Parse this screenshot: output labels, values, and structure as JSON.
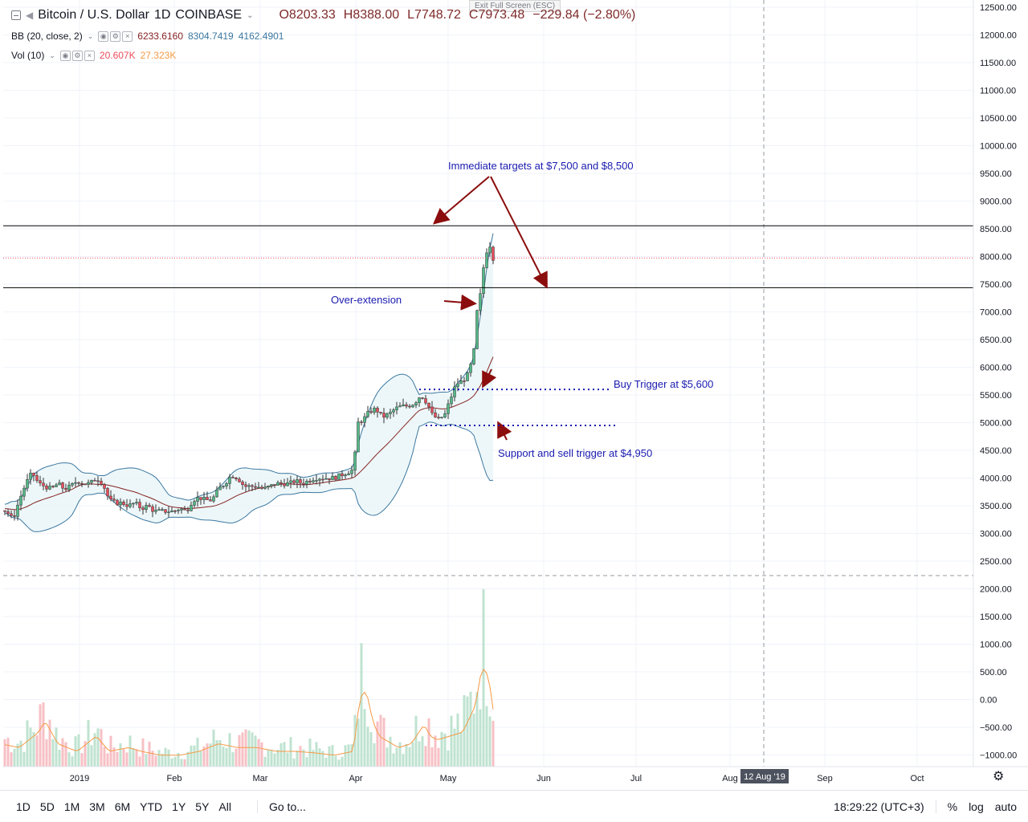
{
  "header": {
    "symbol": "Bitcoin / U.S. Dollar",
    "interval": "1D",
    "exchange": "COINBASE",
    "open": "O8203.33",
    "high": "H8388.00",
    "low": "L7748.72",
    "close": "C7973.48",
    "change": "−229.84 (−2.80%)"
  },
  "indicators": {
    "bb": {
      "label": "BB (20, close, 2)",
      "basis": "6233.6160",
      "upper": "8304.7419",
      "lower": "4162.4901"
    },
    "vol": {
      "label": "Vol (10)",
      "value": "20.607K",
      "ma": "27.323K"
    }
  },
  "exit_fullscreen": "Exit Full Screen (ESC)",
  "annotations": {
    "targets": "Immediate targets at $7,500 and $8,500",
    "overext": "Over-extension",
    "buy": "Buy Trigger at $5,600",
    "support": "Support and sell trigger at $4,950"
  },
  "price_labels": {
    "resistance": "8555.25",
    "last": "7973.48",
    "support": "7436.48",
    "crosshair": "2212.41"
  },
  "crosshair_date": "12 Aug '19",
  "bottom": {
    "timeframes": [
      "1D",
      "5D",
      "1M",
      "3M",
      "6M",
      "YTD",
      "1Y",
      "5Y",
      "All"
    ],
    "goto": "Go to...",
    "clock": "18:29:22 (UTC+3)",
    "percent": "%",
    "log": "log",
    "auto": "auto"
  },
  "colors": {
    "up": "#53b987",
    "down": "#eb4d5c",
    "bb": "#3c78a0",
    "basis": "#872323",
    "annotation": "#1a1ab0",
    "arrow": "#8b0d0d",
    "vol_up": "#bfe3d0",
    "vol_down": "#f7c0c5",
    "vol_ma": "#f59a45"
  },
  "chart_data": {
    "type": "candlestick",
    "y_ticks": [
      "12500.00",
      "12000.00",
      "11500.00",
      "11000.00",
      "10500.00",
      "10000.00",
      "9500.00",
      "9000.00",
      "8500.00",
      "8000.00",
      "7500.00",
      "7000.00",
      "6500.00",
      "6000.00",
      "5500.00",
      "5000.00",
      "4500.00",
      "4000.00",
      "3500.00",
      "3000.00",
      "2500.00",
      "2000.00",
      "1500.00",
      "1000.00",
      "500.00",
      "0.00",
      "−500.00",
      "−1000.00"
    ],
    "x_ticks": [
      "2019",
      "Feb",
      "Mar",
      "Apr",
      "May",
      "Jun",
      "Jul",
      "Aug",
      "Sep",
      "Oct"
    ],
    "price_path": [
      [
        0,
        3450
      ],
      [
        8,
        3400
      ],
      [
        16,
        3250
      ],
      [
        24,
        3600
      ],
      [
        32,
        3900
      ],
      [
        40,
        4100
      ],
      [
        48,
        3900
      ],
      [
        56,
        3850
      ],
      [
        64,
        3800
      ],
      [
        72,
        3900
      ],
      [
        80,
        3800
      ],
      [
        88,
        3850
      ],
      [
        96,
        3950
      ],
      [
        104,
        3900
      ],
      [
        112,
        3900
      ],
      [
        120,
        4000
      ],
      [
        128,
        3900
      ],
      [
        136,
        3600
      ],
      [
        144,
        3550
      ],
      [
        152,
        3550
      ],
      [
        160,
        3500
      ],
      [
        168,
        3550
      ],
      [
        176,
        3450
      ],
      [
        184,
        3500
      ],
      [
        192,
        3400
      ],
      [
        200,
        3400
      ],
      [
        208,
        3400
      ],
      [
        216,
        3400
      ],
      [
        224,
        3450
      ],
      [
        232,
        3400
      ],
      [
        240,
        3600
      ],
      [
        248,
        3650
      ],
      [
        256,
        3600
      ],
      [
        264,
        3600
      ],
      [
        272,
        3800
      ],
      [
        280,
        3900
      ],
      [
        288,
        4050
      ],
      [
        296,
        4000
      ],
      [
        304,
        3850
      ],
      [
        312,
        3850
      ],
      [
        320,
        3850
      ],
      [
        328,
        3800
      ],
      [
        336,
        3850
      ],
      [
        344,
        3900
      ],
      [
        352,
        3900
      ],
      [
        360,
        3900
      ],
      [
        368,
        3950
      ],
      [
        376,
        3900
      ],
      [
        384,
        3950
      ],
      [
        392,
        4000
      ],
      [
        400,
        4000
      ],
      [
        408,
        4000
      ],
      [
        416,
        4000
      ],
      [
        424,
        4050
      ],
      [
        432,
        4100
      ],
      [
        440,
        4150
      ],
      [
        446,
        5000
      ],
      [
        452,
        5050
      ],
      [
        460,
        5200
      ],
      [
        468,
        5250
      ],
      [
        476,
        5100
      ],
      [
        484,
        5150
      ],
      [
        492,
        5250
      ],
      [
        500,
        5300
      ],
      [
        508,
        5300
      ],
      [
        516,
        5350
      ],
      [
        524,
        5500
      ],
      [
        532,
        5350
      ],
      [
        538,
        5150
      ],
      [
        546,
        5050
      ],
      [
        554,
        5150
      ],
      [
        560,
        5400
      ],
      [
        568,
        5700
      ],
      [
        576,
        5750
      ],
      [
        584,
        5900
      ],
      [
        590,
        6300
      ],
      [
        594,
        7000
      ],
      [
        598,
        7300
      ],
      [
        602,
        7800
      ],
      [
        606,
        8100
      ],
      [
        610,
        8200
      ],
      [
        614,
        7970
      ]
    ],
    "volume_path": [
      [
        0,
        30
      ],
      [
        24,
        25
      ],
      [
        48,
        45
      ],
      [
        56,
        60
      ],
      [
        72,
        30
      ],
      [
        96,
        20
      ],
      [
        120,
        40
      ],
      [
        136,
        20
      ],
      [
        160,
        25
      ],
      [
        176,
        20
      ],
      [
        200,
        15
      ],
      [
        224,
        15
      ],
      [
        248,
        20
      ],
      [
        272,
        30
      ],
      [
        296,
        25
      ],
      [
        320,
        25
      ],
      [
        344,
        20
      ],
      [
        368,
        20
      ],
      [
        392,
        18
      ],
      [
        416,
        15
      ],
      [
        440,
        20
      ],
      [
        448,
        90
      ],
      [
        456,
        100
      ],
      [
        464,
        60
      ],
      [
        472,
        40
      ],
      [
        480,
        35
      ],
      [
        496,
        25
      ],
      [
        512,
        30
      ],
      [
        528,
        55
      ],
      [
        536,
        40
      ],
      [
        544,
        35
      ],
      [
        560,
        40
      ],
      [
        576,
        45
      ],
      [
        592,
        80
      ],
      [
        600,
        130
      ],
      [
        608,
        120
      ],
      [
        616,
        60
      ]
    ],
    "labels": [
      "Bitcoin / U.S. Dollar"
    ]
  }
}
